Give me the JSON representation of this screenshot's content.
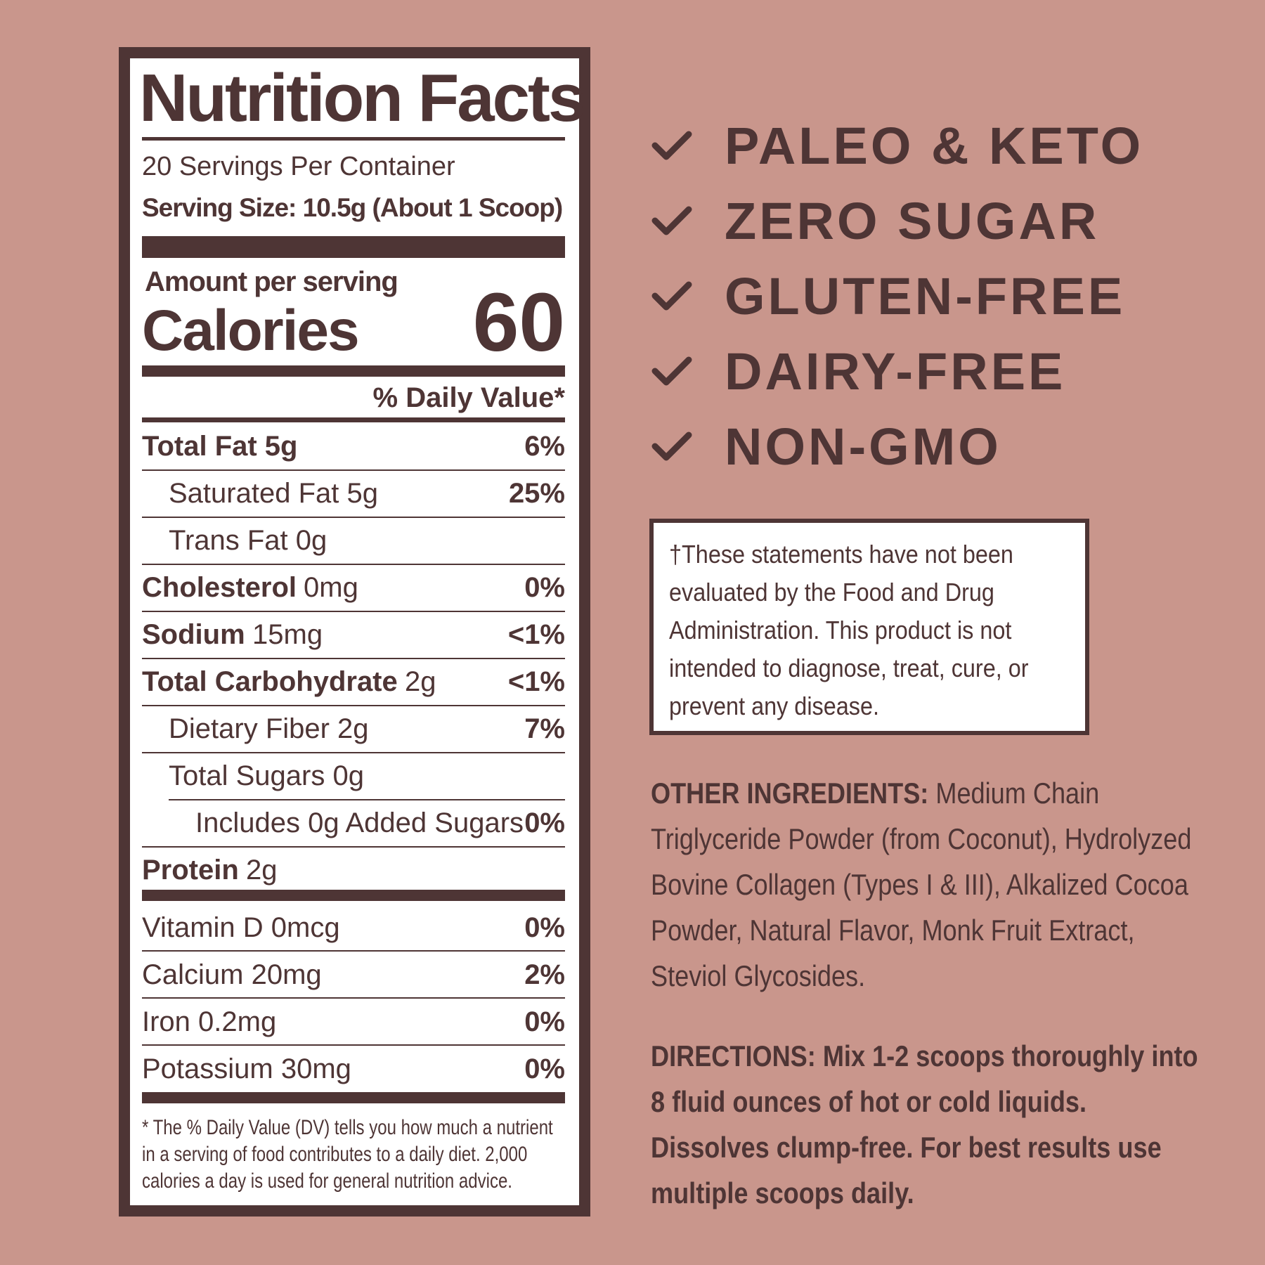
{
  "nutrition": {
    "title": "Nutrition Facts",
    "servings": "20 Servings Per Container",
    "serving_size": "Serving Size: 10.5g (About 1 Scoop)",
    "amount_per_serving": "Amount per serving",
    "calories_label": "Calories",
    "calories_value": "60",
    "daily_value_header": "% Daily Value*",
    "rows": [
      {
        "name": "Total Fat 5g",
        "dv": "6%",
        "sub": [
          {
            "name": "Saturated Fat 5g",
            "dv": "25%"
          },
          {
            "name": "Trans Fat 0g"
          }
        ]
      },
      {
        "name": "Cholesterol",
        "amount": "0mg",
        "dv": "0%"
      },
      {
        "name": "Sodium",
        "amount": "15mg",
        "dv": "<1%"
      },
      {
        "name": "Total Carbohydrate",
        "amount": "2g",
        "dv": "<1%",
        "sub": [
          {
            "name": "Dietary Fiber 2g",
            "dv": "7%"
          },
          {
            "name": "Total Sugars 0g",
            "sub": [
              {
                "name": "Includes 0g Added Sugars",
                "dv": "0%"
              }
            ]
          }
        ]
      },
      {
        "name": "Protein",
        "amount": "2g"
      }
    ],
    "vitamins": [
      {
        "name": "Vitamin D 0mcg",
        "dv": "0%"
      },
      {
        "name": "Calcium 20mg",
        "dv": "2%"
      },
      {
        "name": "Iron 0.2mg",
        "dv": "0%"
      },
      {
        "name": "Potassium 30mg",
        "dv": "0%"
      }
    ],
    "footnote": "* The % Daily Value (DV) tells you how much a nutrient in a serving of food contributes to a daily diet. 2,000 calories a day is used for general nutrition advice."
  },
  "claims": [
    "PALEO & KETO",
    "ZERO SUGAR",
    "GLUTEN-FREE",
    "DAIRY-FREE",
    "NON-GMO"
  ],
  "disclaimer": "†These statements have not been evaluated by the Food and Drug Administration. This product is not intended to diagnose, treat, cure, or prevent any disease.",
  "ingredients": {
    "label": "OTHER INGREDIENTS:",
    "text": "Medium Chain Triglyceride Powder (from Coconut), Hydrolyzed Bovine Collagen (Types I & III), Alkalized Cocoa Powder, Natural Flavor, Monk Fruit Extract, Steviol Glycosides."
  },
  "directions": {
    "label": "DIRECTIONS:",
    "text": "Mix 1-2 scoops thoroughly into 8 fluid ounces of hot or cold liquids. Dissolves clump-free. For best results use multiple scoops daily."
  }
}
